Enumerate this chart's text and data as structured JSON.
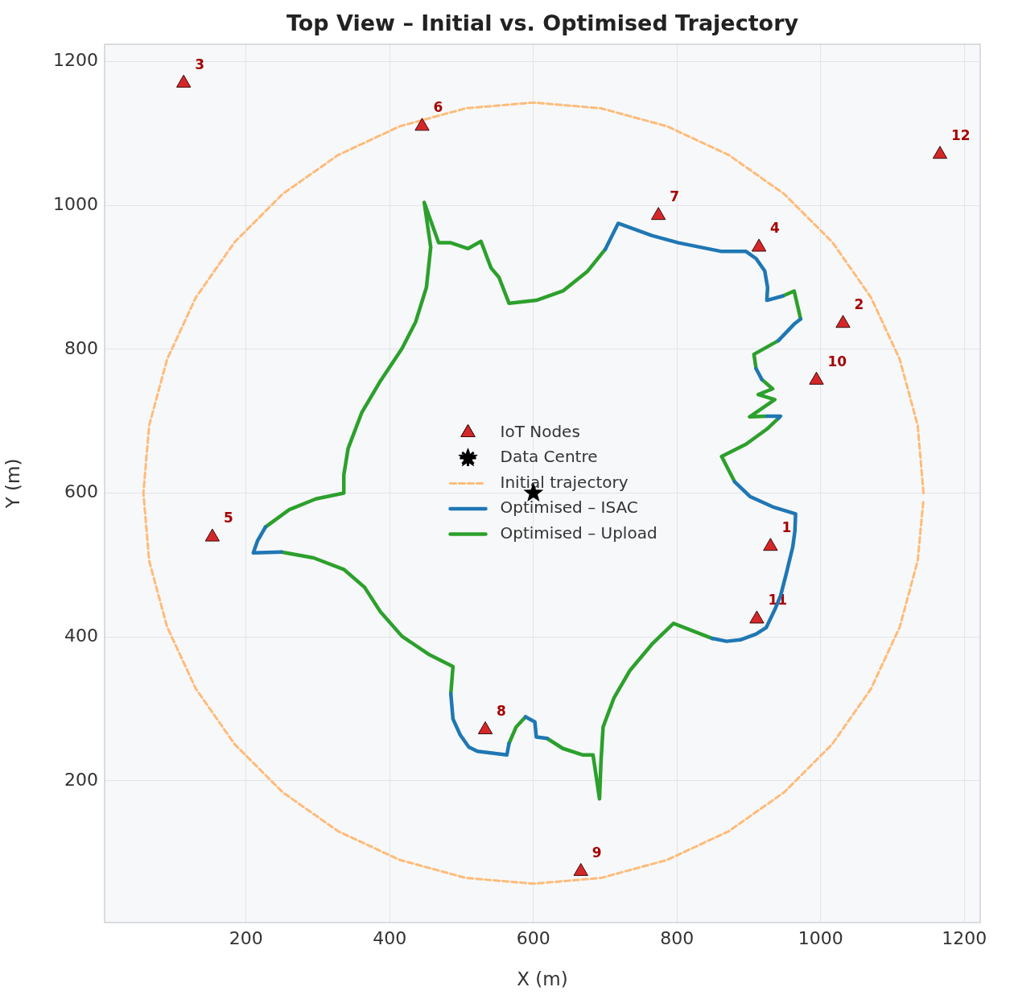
{
  "chart_data": {
    "type": "line",
    "title": "Top View – Initial vs. Optimised Trajectory",
    "xlabel": "X (m)",
    "ylabel": "Y (m)",
    "xlim": [
      3,
      1222
    ],
    "ylim": [
      3,
      1224
    ],
    "xticks": [
      200,
      400,
      600,
      800,
      1000,
      1200
    ],
    "yticks": [
      200,
      400,
      600,
      800,
      1000,
      1200
    ],
    "grid": true,
    "legend": "center",
    "series": [
      {
        "name": "IoT Nodes",
        "type": "scatter",
        "marker": "triangle",
        "color": "#d62728",
        "x": [
          930,
          1031,
          113,
          914,
          153,
          445,
          774,
          533,
          666,
          994,
          911,
          1166
        ],
        "values": [
          526,
          836,
          1170,
          942,
          539,
          1110,
          986,
          271,
          74,
          757,
          425,
          1071
        ]
      },
      {
        "name": "Data Centre",
        "type": "scatter",
        "marker": "star",
        "color": "#000000",
        "x": [
          600
        ],
        "values": [
          600
        ]
      },
      {
        "name": "Initial trajectory",
        "type": "line",
        "line_style": "dashed",
        "color": "#ffbb78",
        "x": [
          1143,
          1135,
          1110,
          1070,
          1016,
          949,
          872,
          786,
          694,
          600,
          506,
          414,
          328,
          251,
          184,
          130,
          90,
          65,
          57,
          65,
          90,
          130,
          184,
          251,
          328,
          414,
          506,
          600,
          694,
          786,
          872,
          949,
          1016,
          1070,
          1110,
          1135,
          1143
        ],
        "values": [
          600,
          694,
          786,
          872,
          949,
          1016,
          1070,
          1110,
          1135,
          1143,
          1135,
          1110,
          1070,
          1016,
          949,
          872,
          786,
          694,
          600,
          506,
          414,
          328,
          251,
          184,
          130,
          90,
          65,
          57,
          65,
          90,
          130,
          184,
          251,
          328,
          414,
          506,
          591
        ]
      },
      {
        "name": "Optimised – ISAC",
        "type": "line",
        "line_style": "solid",
        "color": "#1f77b4",
        "x": [
          700,
          718,
          765,
          802,
          862,
          896,
          910,
          922,
          926,
          925,
          947,
          null,
          972,
          963,
          941,
          null,
          910,
          918,
          null,
          925,
          944,
          941,
          null,
          880,
          902,
          933,
          965,
          964,
          961,
          952,
          944,
          936,
          924,
          910,
          888,
          869,
          849,
          null,
          619,
          604,
          602,
          589,
          null,
          566,
          563,
          522,
          510,
          498,
          488,
          485,
          null,
          249,
          210,
          216,
          227
        ],
        "values": [
          939,
          975,
          958,
          948,
          936,
          936,
          926,
          909,
          886,
          868,
          874,
          null,
          842,
          835,
          812,
          null,
          773,
          758,
          null,
          707,
          707,
          704,
          null,
          616,
          595,
          581,
          571,
          547,
          525,
          488,
          457,
          438,
          413,
          404,
          396,
          394,
          398,
          null,
          259,
          261,
          282,
          289,
          null,
          252,
          236,
          241,
          247,
          264,
          286,
          321,
          null,
          518,
          517,
          534,
          553
        ]
      },
      {
        "name": "Optimised – Upload",
        "type": "line",
        "line_style": "solid",
        "color": "#2ca02c",
        "x": [
          448,
          468,
          485,
          509,
          527,
          541,
          552,
          566,
          604,
          641,
          675,
          700,
          null,
          947,
          963,
          972,
          null,
          941,
          907,
          910,
          null,
          918,
          933,
          913,
          936,
          901,
          925,
          null,
          941,
          925,
          896,
          862,
          880,
          null,
          849,
          795,
          765,
          734,
          712,
          697,
          694,
          692,
          683,
          669,
          641,
          619,
          null,
          589,
          576,
          566,
          null,
          485,
          488,
          454,
          417,
          387,
          365,
          336,
          294,
          249,
          null,
          227,
          260,
          297,
          336,
          336,
          342,
          361,
          387,
          417,
          436,
          451,
          457,
          448
        ],
        "values": [
          1004,
          948,
          948,
          940,
          950,
          913,
          900,
          864,
          868,
          881,
          908,
          939,
          null,
          874,
          881,
          842,
          null,
          812,
          793,
          773,
          null,
          758,
          745,
          737,
          730,
          706,
          707,
          null,
          704,
          689,
          668,
          651,
          616,
          null,
          398,
          419,
          390,
          353,
          315,
          275,
          226,
          175,
          236,
          236,
          245,
          259,
          null,
          289,
          275,
          252,
          null,
          321,
          359,
          376,
          401,
          435,
          469,
          494,
          510,
          518,
          null,
          553,
          577,
          592,
          600,
          625,
          662,
          712,
          756,
          801,
          838,
          886,
          942,
          1004
        ]
      }
    ],
    "annotations": [
      {
        "text": "1",
        "x": 930,
        "y": 526
      },
      {
        "text": "2",
        "x": 1031,
        "y": 836
      },
      {
        "text": "3",
        "x": 113,
        "y": 1170
      },
      {
        "text": "4",
        "x": 914,
        "y": 942
      },
      {
        "text": "5",
        "x": 153,
        "y": 539
      },
      {
        "text": "6",
        "x": 445,
        "y": 1110
      },
      {
        "text": "7",
        "x": 774,
        "y": 986
      },
      {
        "text": "8",
        "x": 533,
        "y": 271
      },
      {
        "text": "9",
        "x": 666,
        "y": 74
      },
      {
        "text": "10",
        "x": 994,
        "y": 757
      },
      {
        "text": "11",
        "x": 911,
        "y": 425
      },
      {
        "text": "12",
        "x": 1166,
        "y": 1071
      }
    ]
  }
}
